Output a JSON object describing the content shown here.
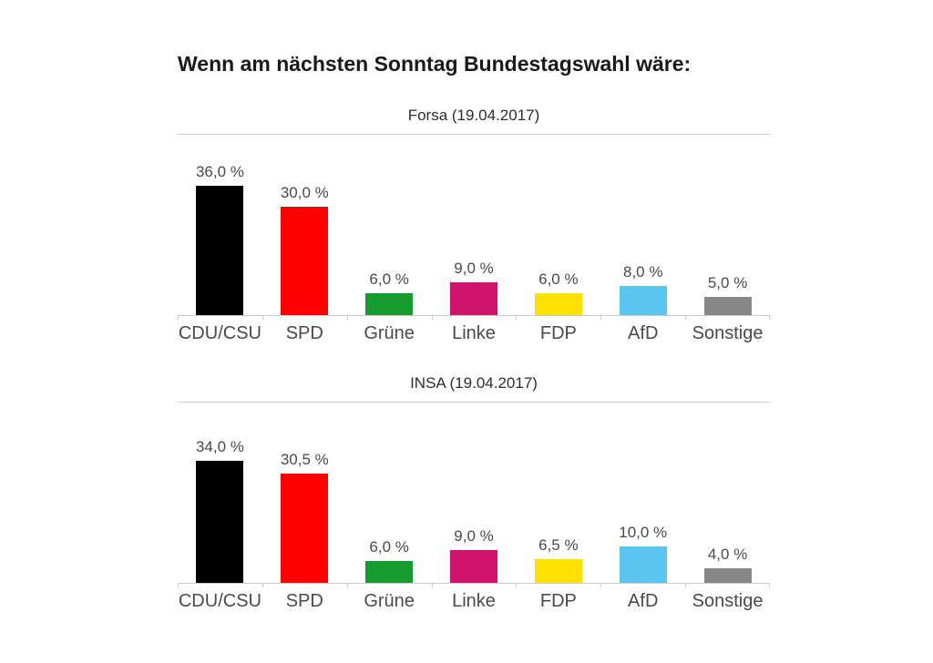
{
  "page": {
    "title": "Wenn am nächsten Sonntag Bundestagswahl wäre:"
  },
  "party_colors": {
    "CDU/CSU": "#000000",
    "SPD": "#fe0000",
    "Grüne": "#169c2e",
    "Linke": "#d2136e",
    "FDP": "#ffe000",
    "AfD": "#5bc5f2",
    "Sonstige": "#878787"
  },
  "chart_data": [
    {
      "type": "bar",
      "title": "Forsa (19.04.2017)",
      "categories": [
        "CDU/CSU",
        "SPD",
        "Grüne",
        "Linke",
        "FDP",
        "AfD",
        "Sonstige"
      ],
      "values": [
        36.0,
        30.0,
        6.0,
        9.0,
        6.0,
        8.0,
        5.0
      ],
      "value_labels": [
        "36,0 %",
        "30,0 %",
        "6,0 %",
        "9,0 %",
        "6,0 %",
        "8,0 %",
        "5,0 %"
      ],
      "xlabel": "",
      "ylabel": "",
      "ylim": [
        0,
        40
      ],
      "grid": false,
      "legend": null
    },
    {
      "type": "bar",
      "title": "INSA (19.04.2017)",
      "categories": [
        "CDU/CSU",
        "SPD",
        "Grüne",
        "Linke",
        "FDP",
        "AfD",
        "Sonstige"
      ],
      "values": [
        34.0,
        30.5,
        6.0,
        9.0,
        6.5,
        10.0,
        4.0
      ],
      "value_labels": [
        "34,0 %",
        "30,5 %",
        "6,0 %",
        "9,0 %",
        "6,5 %",
        "10,0 %",
        "4,0 %"
      ],
      "xlabel": "",
      "ylabel": "",
      "ylim": [
        0,
        40
      ],
      "grid": false,
      "legend": null
    }
  ]
}
